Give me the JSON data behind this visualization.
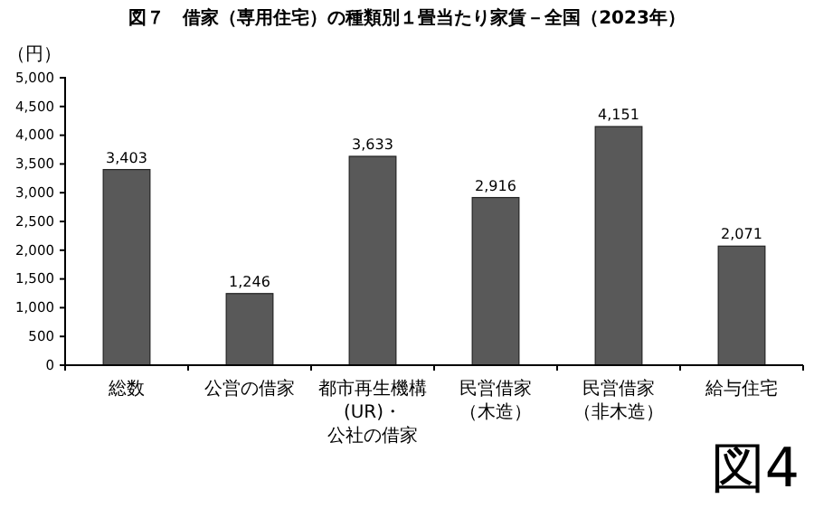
{
  "chart_data": {
    "type": "bar",
    "title": "図７　借家（専用住宅）の種類別１畳当たり家賃－全国（2023年）",
    "ylabel": "（円）",
    "categories": [
      "総数",
      "公営の借家",
      "都市再生機構(UR)・公社の借家",
      "民営借家（木造）",
      "民営借家（非木造）",
      "給与住宅"
    ],
    "values": [
      3403,
      1246,
      3633,
      2916,
      4151,
      2071
    ],
    "color": "#595959",
    "value_labels": [
      "3,403",
      "1,246",
      "3,633",
      "2,916",
      "4,151",
      "2,071"
    ],
    "ylim": [
      0,
      5000
    ],
    "yticks": [
      0,
      500,
      {
        "value": 1000,
        "label": "1,000"
      },
      {
        "value": 1500,
        "label": "1,500"
      },
      {
        "value": 2000,
        "label": "2,000"
      },
      {
        "value": 2500,
        "label": "2,500"
      },
      {
        "value": 3000,
        "label": "3,000"
      },
      {
        "value": 3500,
        "label": "3,500"
      },
      {
        "value": 4000,
        "label": "4,000"
      },
      {
        "value": 4500,
        "label": "4,500"
      },
      {
        "value": 5000,
        "label": "5,000"
      }
    ],
    "grid": false,
    "annotations": [
      "図4"
    ]
  }
}
